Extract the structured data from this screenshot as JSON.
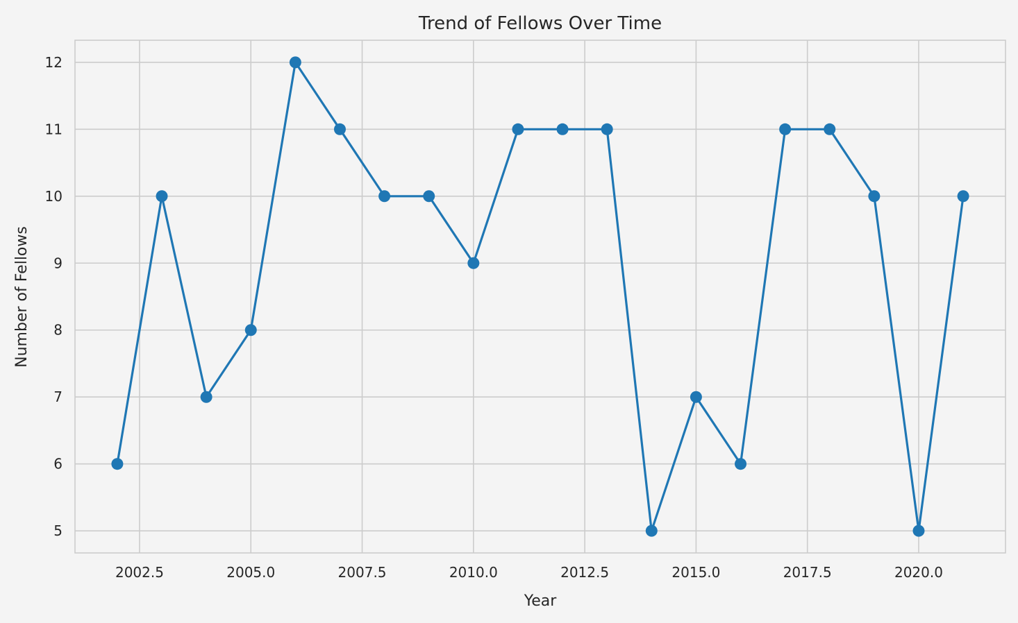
{
  "chart_data": {
    "type": "line",
    "title": "Trend of Fellows Over Time",
    "xlabel": "Year",
    "ylabel": "Number of Fellows",
    "xlim": [
      2001.05,
      2021.95
    ],
    "ylim": [
      4.67,
      12.33
    ],
    "x_ticks": [
      {
        "value": 2002.5,
        "label": "2002.5"
      },
      {
        "value": 2005.0,
        "label": "2005.0"
      },
      {
        "value": 2007.5,
        "label": "2007.5"
      },
      {
        "value": 2010.0,
        "label": "2010.0"
      },
      {
        "value": 2012.5,
        "label": "2012.5"
      },
      {
        "value": 2015.0,
        "label": "2015.0"
      },
      {
        "value": 2017.5,
        "label": "2017.5"
      },
      {
        "value": 2020.0,
        "label": "2020.0"
      }
    ],
    "y_ticks": [
      {
        "value": 5,
        "label": "5"
      },
      {
        "value": 6,
        "label": "6"
      },
      {
        "value": 7,
        "label": "7"
      },
      {
        "value": 8,
        "label": "8"
      },
      {
        "value": 9,
        "label": "9"
      },
      {
        "value": 10,
        "label": "10"
      },
      {
        "value": 11,
        "label": "11"
      },
      {
        "value": 12,
        "label": "12"
      }
    ],
    "grid": true,
    "series": [
      {
        "color": "#1f77b4",
        "marker": "circle",
        "x": [
          2002,
          2003,
          2004,
          2005,
          2006,
          2007,
          2008,
          2009,
          2010,
          2011,
          2012,
          2013,
          2014,
          2015,
          2016,
          2017,
          2018,
          2019,
          2020,
          2021
        ],
        "y": [
          6,
          10,
          7,
          8,
          12,
          11,
          10,
          10,
          9,
          11,
          11,
          11,
          5,
          7,
          6,
          11,
          11,
          10,
          5,
          10
        ]
      }
    ],
    "colors": {
      "background": "#f4f4f4",
      "grid": "#cccccc",
      "text": "#262626"
    }
  }
}
